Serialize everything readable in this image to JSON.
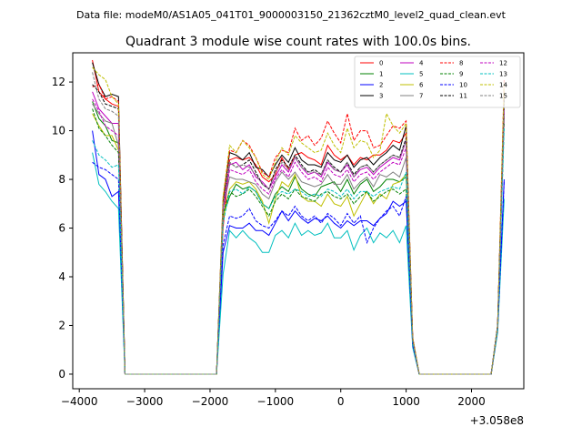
{
  "chart_data": {
    "type": "line",
    "suptitle": "Data file: modeM0/AS1A05_041T01_9000003150_21362cztM0_level2_quad_clean.evt",
    "title": "Quadrant 3 module wise count rates with 100.0s bins.",
    "xlabel": "",
    "ylabel": "",
    "x_offset_label": "+3.058e8",
    "xlim": [
      -4100,
      2800
    ],
    "ylim": [
      -0.6,
      13.2
    ],
    "xticks": [
      -4000,
      -3000,
      -2000,
      -1000,
      0,
      1000,
      2000
    ],
    "xtick_labels": [
      "−4000",
      "−3000",
      "−2000",
      "−1000",
      "0",
      "1000",
      "2000"
    ],
    "yticks": [
      0,
      2,
      4,
      6,
      8,
      10,
      12
    ],
    "ytick_labels": [
      "0",
      "2",
      "4",
      "6",
      "8",
      "10",
      "12"
    ],
    "grid": false,
    "legend_position": "upper-right",
    "x": [
      -3800,
      -3700,
      -3600,
      -3500,
      -3400,
      -3300,
      -3200,
      -3100,
      -3000,
      -2900,
      -2800,
      -2700,
      -2600,
      -2500,
      -2400,
      -2300,
      -2200,
      -2100,
      -2000,
      -1900,
      -1800,
      -1700,
      -1600,
      -1500,
      -1400,
      -1300,
      -1200,
      -1100,
      -1000,
      -900,
      -800,
      -700,
      -600,
      -500,
      -400,
      -300,
      -200,
      -100,
      0,
      100,
      200,
      300,
      400,
      500,
      600,
      700,
      800,
      900,
      1000,
      1100,
      1200,
      1300,
      1400,
      1500,
      1600,
      1700,
      1800,
      1900,
      2000,
      2100,
      2200,
      2300,
      2400,
      2500
    ],
    "series": [
      {
        "name": "0",
        "color": "#ff0000",
        "dash": "solid",
        "values": [
          12.9,
          11.6,
          11.3,
          11.1,
          11.0,
          0.0,
          0.0,
          0.0,
          0.0,
          0.0,
          0.0,
          0.0,
          0.0,
          0.0,
          0.0,
          0.0,
          0.0,
          0.0,
          0.0,
          0.0,
          6.0,
          8.8,
          8.9,
          8.8,
          8.9,
          8.6,
          8.1,
          7.9,
          8.2,
          8.9,
          8.4,
          9.0,
          9.1,
          8.9,
          8.8,
          8.6,
          9.4,
          9.0,
          8.8,
          9.0,
          8.6,
          8.9,
          8.8,
          9.0,
          9.0,
          9.2,
          9.6,
          9.5,
          9.9,
          1.5,
          0.0,
          0.0,
          0.0,
          0.0,
          0.0,
          0.0,
          0.0,
          0.0,
          0.0,
          0.0,
          0.0,
          0.0,
          1.9,
          11.6
        ]
      },
      {
        "name": "1",
        "color": "#008000",
        "dash": "solid",
        "values": [
          11.2,
          10.5,
          10.2,
          9.6,
          9.5,
          0.0,
          0.0,
          0.0,
          0.0,
          0.0,
          0.0,
          0.0,
          0.0,
          0.0,
          0.0,
          0.0,
          0.0,
          0.0,
          0.0,
          0.0,
          6.5,
          7.3,
          7.8,
          7.6,
          7.7,
          7.5,
          7.0,
          6.8,
          7.4,
          7.7,
          7.5,
          8.1,
          7.6,
          7.4,
          7.3,
          7.7,
          7.8,
          7.9,
          7.5,
          8.0,
          7.4,
          7.8,
          8.0,
          7.5,
          7.7,
          8.0,
          8.0,
          7.9,
          8.1,
          1.4,
          0.0,
          0.0,
          0.0,
          0.0,
          0.0,
          0.0,
          0.0,
          0.0,
          0.0,
          0.0,
          0.0,
          0.0,
          1.9,
          10.6
        ]
      },
      {
        "name": "2",
        "color": "#0000ff",
        "dash": "solid",
        "values": [
          10.0,
          8.2,
          8.0,
          7.3,
          7.5,
          0.0,
          0.0,
          0.0,
          0.0,
          0.0,
          0.0,
          0.0,
          0.0,
          0.0,
          0.0,
          0.0,
          0.0,
          0.0,
          0.0,
          0.0,
          5.0,
          6.1,
          6.0,
          6.0,
          6.2,
          5.9,
          5.9,
          5.7,
          6.2,
          6.7,
          6.3,
          6.7,
          6.4,
          6.2,
          6.4,
          6.3,
          6.5,
          6.2,
          6.0,
          6.3,
          6.1,
          6.3,
          6.3,
          6.1,
          6.4,
          6.6,
          7.1,
          6.9,
          7.1,
          1.2,
          0.0,
          0.0,
          0.0,
          0.0,
          0.0,
          0.0,
          0.0,
          0.0,
          0.0,
          0.0,
          0.0,
          0.0,
          1.8,
          8.0
        ]
      },
      {
        "name": "3",
        "color": "#000000",
        "dash": "solid",
        "values": [
          12.8,
          11.9,
          11.4,
          11.5,
          11.4,
          0.0,
          0.0,
          0.0,
          0.0,
          0.0,
          0.0,
          0.0,
          0.0,
          0.0,
          0.0,
          0.0,
          0.0,
          0.0,
          0.0,
          0.0,
          7.1,
          9.1,
          9.0,
          8.8,
          9.1,
          8.5,
          8.4,
          8.1,
          8.6,
          9.0,
          8.7,
          9.3,
          8.8,
          8.6,
          8.6,
          8.5,
          9.1,
          8.8,
          8.7,
          9.0,
          8.5,
          8.8,
          8.9,
          8.6,
          8.9,
          9.1,
          9.4,
          9.2,
          10.2,
          1.4,
          0.0,
          0.0,
          0.0,
          0.0,
          0.0,
          0.0,
          0.0,
          0.0,
          0.0,
          0.0,
          0.0,
          0.0,
          2.0,
          11.3
        ]
      },
      {
        "name": "4",
        "color": "#bf00bf",
        "dash": "solid",
        "values": [
          11.6,
          10.9,
          10.6,
          10.3,
          10.3,
          0.0,
          0.0,
          0.0,
          0.0,
          0.0,
          0.0,
          0.0,
          0.0,
          0.0,
          0.0,
          0.0,
          0.0,
          0.0,
          0.0,
          0.0,
          6.8,
          8.6,
          8.7,
          8.4,
          8.6,
          8.1,
          7.9,
          7.6,
          8.1,
          8.6,
          8.3,
          8.9,
          8.5,
          8.2,
          8.3,
          8.1,
          8.7,
          8.4,
          8.3,
          8.6,
          8.1,
          8.4,
          8.5,
          8.2,
          8.5,
          8.7,
          8.9,
          8.8,
          9.6,
          1.4,
          0.0,
          0.0,
          0.0,
          0.0,
          0.0,
          0.0,
          0.0,
          0.0,
          0.0,
          0.0,
          0.0,
          0.0,
          2.0,
          10.9
        ]
      },
      {
        "name": "5",
        "color": "#00bfbf",
        "dash": "solid",
        "values": [
          9.1,
          7.8,
          7.5,
          7.1,
          6.8,
          0.0,
          0.0,
          0.0,
          0.0,
          0.0,
          0.0,
          0.0,
          0.0,
          0.0,
          0.0,
          0.0,
          0.0,
          0.0,
          0.0,
          0.0,
          4.1,
          5.9,
          5.6,
          5.9,
          5.6,
          5.4,
          5.0,
          5.0,
          5.7,
          5.9,
          5.6,
          6.2,
          5.7,
          5.9,
          5.7,
          5.8,
          6.2,
          5.6,
          5.6,
          5.9,
          5.1,
          5.7,
          6.0,
          5.4,
          5.8,
          5.6,
          5.9,
          5.4,
          6.1,
          1.1,
          0.0,
          0.0,
          0.0,
          0.0,
          0.0,
          0.0,
          0.0,
          0.0,
          0.0,
          0.0,
          0.0,
          0.0,
          1.7,
          7.2
        ]
      },
      {
        "name": "6",
        "color": "#bfbf00",
        "dash": "solid",
        "values": [
          10.7,
          10.2,
          9.8,
          9.8,
          9.2,
          0.0,
          0.0,
          0.0,
          0.0,
          0.0,
          0.0,
          0.0,
          0.0,
          0.0,
          0.0,
          0.0,
          0.0,
          0.0,
          0.0,
          0.0,
          6.4,
          7.6,
          7.9,
          7.8,
          7.9,
          7.6,
          7.1,
          6.2,
          7.2,
          7.9,
          7.7,
          8.2,
          7.3,
          7.1,
          7.1,
          6.9,
          7.4,
          7.0,
          6.9,
          7.3,
          6.5,
          7.0,
          7.5,
          7.0,
          7.4,
          7.2,
          7.8,
          7.9,
          8.2,
          1.4,
          0.0,
          0.0,
          0.0,
          0.0,
          0.0,
          0.0,
          0.0,
          0.0,
          0.0,
          0.0,
          0.0,
          0.0,
          1.8,
          11.6
        ]
      },
      {
        "name": "7",
        "color": "#808080",
        "dash": "solid",
        "values": [
          11.1,
          10.7,
          10.4,
          10.3,
          9.4,
          0.0,
          0.0,
          0.0,
          0.0,
          0.0,
          0.0,
          0.0,
          0.0,
          0.0,
          0.0,
          0.0,
          0.0,
          0.0,
          0.0,
          0.0,
          6.8,
          8.1,
          8.0,
          8.0,
          7.9,
          7.8,
          7.4,
          7.2,
          7.9,
          8.3,
          8.0,
          8.3,
          7.9,
          7.8,
          7.7,
          7.8,
          8.2,
          7.8,
          7.8,
          8.2,
          7.6,
          7.9,
          8.1,
          7.7,
          8.2,
          8.1,
          8.3,
          8.1,
          8.9,
          1.5,
          0.0,
          0.0,
          0.0,
          0.0,
          0.0,
          0.0,
          0.0,
          0.0,
          0.0,
          0.0,
          0.0,
          0.0,
          1.9,
          10.7
        ]
      },
      {
        "name": "8",
        "color": "#ff0000",
        "dash": "dashed",
        "values": [
          11.8,
          11.9,
          11.3,
          11.4,
          11.2,
          0.0,
          0.0,
          0.0,
          0.0,
          0.0,
          0.0,
          0.0,
          0.0,
          0.0,
          0.0,
          0.0,
          0.0,
          0.0,
          0.0,
          0.0,
          7.2,
          9.2,
          9.1,
          9.6,
          9.4,
          8.9,
          8.3,
          8.1,
          8.9,
          9.2,
          9.1,
          10.1,
          9.6,
          9.8,
          9.4,
          9.7,
          10.4,
          9.9,
          9.5,
          10.7,
          9.6,
          10.0,
          10.0,
          9.3,
          9.4,
          9.8,
          10.2,
          10.1,
          10.4,
          1.5,
          0.0,
          0.0,
          0.0,
          0.0,
          0.0,
          0.0,
          0.0,
          0.0,
          0.0,
          0.0,
          0.0,
          0.0,
          2.0,
          12.1
        ]
      },
      {
        "name": "9",
        "color": "#008000",
        "dash": "dashed",
        "values": [
          10.9,
          10.1,
          9.8,
          9.4,
          9.1,
          0.0,
          0.0,
          0.0,
          0.0,
          0.0,
          0.0,
          0.0,
          0.0,
          0.0,
          0.0,
          0.0,
          0.0,
          0.0,
          0.0,
          0.0,
          6.6,
          7.5,
          7.3,
          7.4,
          7.6,
          7.3,
          6.9,
          6.5,
          7.1,
          7.4,
          7.2,
          7.6,
          7.3,
          7.2,
          7.1,
          7.4,
          7.5,
          7.3,
          7.2,
          7.4,
          7.0,
          7.3,
          7.5,
          7.1,
          7.3,
          7.5,
          7.6,
          7.4,
          7.6,
          1.3,
          0.0,
          0.0,
          0.0,
          0.0,
          0.0,
          0.0,
          0.0,
          0.0,
          0.0,
          0.0,
          0.0,
          0.0,
          1.9,
          10.3
        ]
      },
      {
        "name": "10",
        "color": "#0000ff",
        "dash": "dashed",
        "values": [
          8.7,
          8.5,
          8.4,
          8.2,
          8.0,
          0.0,
          0.0,
          0.0,
          0.0,
          0.0,
          0.0,
          0.0,
          0.0,
          0.0,
          0.0,
          0.0,
          0.0,
          0.0,
          0.0,
          0.0,
          5.3,
          6.5,
          6.4,
          6.5,
          6.8,
          6.3,
          6.1,
          6.0,
          6.3,
          6.7,
          6.5,
          6.9,
          6.5,
          6.3,
          6.5,
          6.2,
          6.6,
          6.4,
          6.1,
          6.6,
          6.2,
          6.5,
          5.4,
          6.0,
          6.4,
          6.7,
          6.9,
          6.5,
          7.3,
          1.2,
          0.0,
          0.0,
          0.0,
          0.0,
          0.0,
          0.0,
          0.0,
          0.0,
          0.0,
          0.0,
          0.0,
          0.0,
          1.8,
          7.9
        ]
      },
      {
        "name": "11",
        "color": "#000000",
        "dash": "dashed",
        "values": [
          11.9,
          11.6,
          11.1,
          11.0,
          10.9,
          0.0,
          0.0,
          0.0,
          0.0,
          0.0,
          0.0,
          0.0,
          0.0,
          0.0,
          0.0,
          0.0,
          0.0,
          0.0,
          0.0,
          0.0,
          6.9,
          8.7,
          8.5,
          8.6,
          8.8,
          8.3,
          7.8,
          7.6,
          8.4,
          8.8,
          8.5,
          9.0,
          8.6,
          8.3,
          8.4,
          8.2,
          8.8,
          8.5,
          8.3,
          8.7,
          8.2,
          8.5,
          8.6,
          8.3,
          8.6,
          8.8,
          9.0,
          8.9,
          9.7,
          1.4,
          0.0,
          0.0,
          0.0,
          0.0,
          0.0,
          0.0,
          0.0,
          0.0,
          0.0,
          0.0,
          0.0,
          0.0,
          2.0,
          11.3
        ]
      },
      {
        "name": "12",
        "color": "#bf00bf",
        "dash": "dashed",
        "values": [
          11.3,
          10.8,
          10.2,
          10.0,
          9.8,
          0.0,
          0.0,
          0.0,
          0.0,
          0.0,
          0.0,
          0.0,
          0.0,
          0.0,
          0.0,
          0.0,
          0.0,
          0.0,
          0.0,
          0.0,
          6.7,
          8.4,
          8.3,
          8.2,
          8.4,
          7.9,
          7.6,
          7.4,
          8.0,
          8.4,
          8.1,
          8.7,
          8.3,
          8.0,
          8.1,
          7.9,
          8.5,
          8.2,
          8.1,
          8.4,
          7.9,
          8.2,
          8.3,
          8.0,
          8.3,
          8.5,
          8.7,
          8.6,
          9.3,
          1.4,
          0.0,
          0.0,
          0.0,
          0.0,
          0.0,
          0.0,
          0.0,
          0.0,
          0.0,
          0.0,
          0.0,
          0.0,
          1.9,
          10.8
        ]
      },
      {
        "name": "13",
        "color": "#00bfbf",
        "dash": "dashed",
        "values": [
          9.6,
          9.0,
          8.8,
          8.5,
          8.6,
          0.0,
          0.0,
          0.0,
          0.0,
          0.0,
          0.0,
          0.0,
          0.0,
          0.0,
          0.0,
          0.0,
          0.0,
          0.0,
          0.0,
          0.0,
          6.2,
          7.5,
          7.6,
          7.4,
          7.7,
          7.5,
          7.0,
          6.8,
          7.3,
          7.5,
          7.4,
          7.6,
          7.5,
          7.3,
          7.4,
          7.3,
          7.6,
          7.5,
          7.3,
          7.6,
          7.2,
          7.5,
          7.5,
          7.3,
          7.5,
          7.6,
          7.7,
          7.6,
          8.3,
          1.3,
          0.0,
          0.0,
          0.0,
          0.0,
          0.0,
          0.0,
          0.0,
          0.0,
          0.0,
          0.0,
          0.0,
          0.0,
          1.8,
          10.1
        ]
      },
      {
        "name": "14",
        "color": "#bfbf00",
        "dash": "dashed",
        "values": [
          12.6,
          12.3,
          12.1,
          11.4,
          11.1,
          0.0,
          0.0,
          0.0,
          0.0,
          0.0,
          0.0,
          0.0,
          0.0,
          0.0,
          0.0,
          0.0,
          0.0,
          0.0,
          0.0,
          0.0,
          7.3,
          9.4,
          9.1,
          9.6,
          9.3,
          8.9,
          8.2,
          8.0,
          8.7,
          9.3,
          9.0,
          9.8,
          9.5,
          9.3,
          9.1,
          9.2,
          9.9,
          9.4,
          9.1,
          10.1,
          9.3,
          9.6,
          9.5,
          8.9,
          9.2,
          10.7,
          10.2,
          9.9,
          10.3,
          1.5,
          0.0,
          0.0,
          0.0,
          0.0,
          0.0,
          0.0,
          0.0,
          0.0,
          0.0,
          0.0,
          0.0,
          0.0,
          2.0,
          12.0
        ]
      },
      {
        "name": "15",
        "color": "#808080",
        "dash": "dashed",
        "values": [
          12.4,
          11.3,
          10.9,
          10.8,
          10.6,
          0.0,
          0.0,
          0.0,
          0.0,
          0.0,
          0.0,
          0.0,
          0.0,
          0.0,
          0.0,
          0.0,
          0.0,
          0.0,
          0.0,
          0.0,
          6.9,
          8.7,
          8.5,
          8.6,
          8.5,
          8.2,
          7.8,
          7.6,
          8.3,
          8.7,
          8.4,
          8.9,
          8.5,
          8.3,
          8.3,
          8.2,
          8.8,
          8.4,
          8.3,
          8.7,
          8.1,
          8.5,
          8.6,
          8.3,
          8.6,
          8.8,
          9.0,
          8.9,
          9.6,
          1.4,
          0.0,
          0.0,
          0.0,
          0.0,
          0.0,
          0.0,
          0.0,
          0.0,
          0.0,
          0.0,
          0.0,
          0.0,
          2.0,
          11.1
        ]
      }
    ]
  }
}
